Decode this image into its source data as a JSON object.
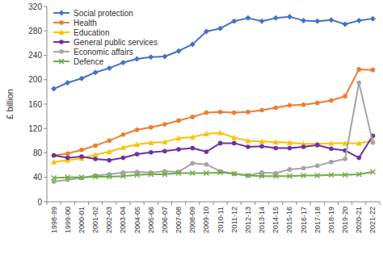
{
  "chart_data": {
    "type": "line",
    "y_label": "£ billion",
    "categories": [
      "1998-99",
      "1999-00",
      "2000-01",
      "2001-02",
      "2002-03",
      "2003-04",
      "2004-05",
      "2005-06",
      "2006-07",
      "2007-08",
      "2008-09",
      "2009-10",
      "2010-11",
      "2011-12",
      "2012-13",
      "2013-14",
      "2014-15",
      "2015-16",
      "2016-17",
      "2017-18",
      "2018-19",
      "2019-20",
      "2020-21",
      "2021-22"
    ],
    "series": [
      {
        "name": "Social protection",
        "color": "#4472c4",
        "marker": "diamond",
        "values": [
          185,
          195,
          202,
          212,
          219,
          228,
          234,
          237,
          238,
          247,
          258,
          279,
          284,
          296,
          301,
          296,
          301,
          303,
          297,
          296,
          298,
          291,
          297,
          300
        ]
      },
      {
        "name": "Health",
        "color": "#ed7d31",
        "marker": "circle",
        "values": [
          76,
          79,
          85,
          92,
          100,
          110,
          118,
          122,
          127,
          133,
          139,
          146,
          147,
          146,
          147,
          150,
          154,
          158,
          159,
          162,
          166,
          173,
          217,
          216
        ]
      },
      {
        "name": "Education",
        "color": "#ffc000",
        "marker": "triangle",
        "values": [
          65,
          68,
          71,
          77,
          82,
          89,
          94,
          97,
          98,
          104,
          106,
          111,
          113,
          105,
          100,
          99,
          98,
          97,
          95,
          95,
          96,
          96,
          96,
          100
        ]
      },
      {
        "name": "General public services",
        "color": "#7030a0",
        "marker": "circle",
        "values": [
          76,
          72,
          74,
          70,
          68,
          72,
          78,
          81,
          83,
          86,
          88,
          82,
          96,
          96,
          90,
          91,
          88,
          88,
          90,
          93,
          87,
          84,
          72,
          108
        ]
      },
      {
        "name": "Economic affairs",
        "color": "#a5a5a5",
        "marker": "circle",
        "values": [
          33,
          36,
          39,
          43,
          45,
          48,
          49,
          48,
          50,
          49,
          63,
          61,
          50,
          46,
          43,
          48,
          47,
          53,
          55,
          59,
          65,
          70,
          195,
          97
        ]
      },
      {
        "name": "Defence",
        "color": "#70ad47",
        "marker": "x",
        "values": [
          39,
          40,
          40,
          41,
          41,
          42,
          44,
          45,
          45,
          47,
          47,
          47,
          48,
          46,
          43,
          42,
          42,
          42,
          43,
          43,
          44,
          44,
          45,
          49
        ]
      }
    ],
    "ylim": [
      0,
      320
    ],
    "yticks": [
      0,
      40,
      80,
      120,
      160,
      200,
      240,
      280,
      320
    ],
    "grid": false,
    "legend": "top-left"
  }
}
